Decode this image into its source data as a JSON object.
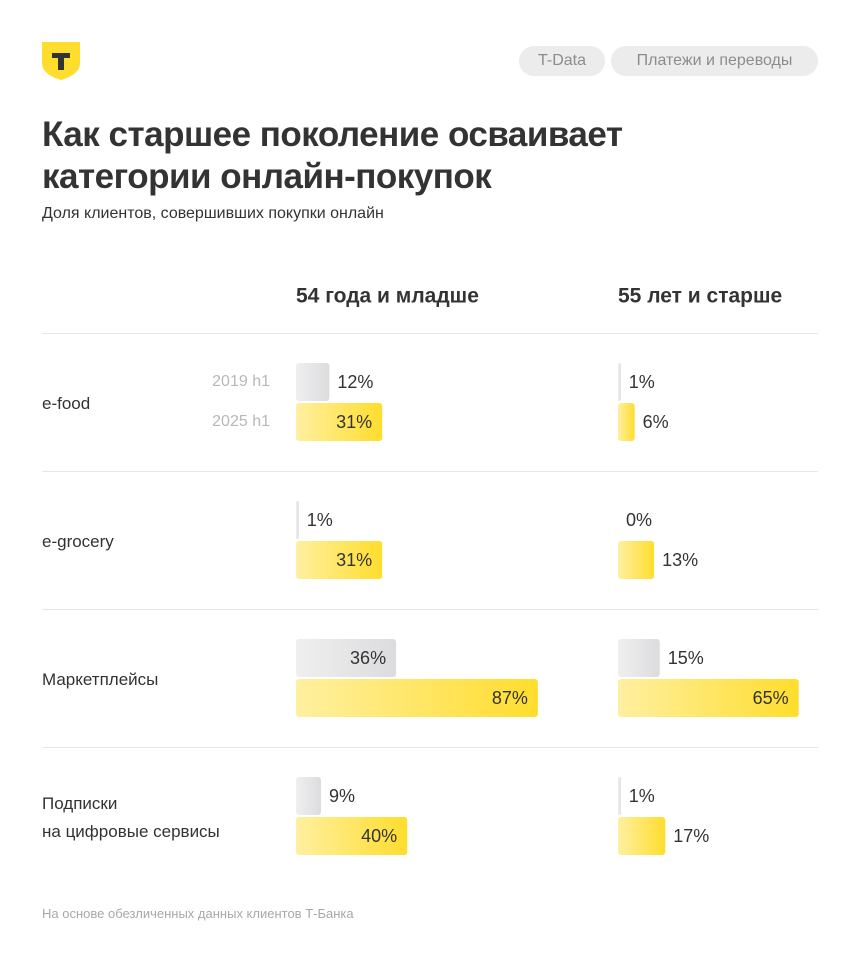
{
  "header": {
    "tags": [
      "T-Data",
      "Платежи и переводы"
    ]
  },
  "chart_data": {
    "type": "grouped-hbar",
    "title": "Как старшее поколение осваивает\nкатегории онлайн-покупок",
    "subtitle": "Доля клиентов, совершивших покупки онлайн",
    "categories": [
      "e-food",
      "e-grocery",
      "Маркетплейсы",
      "Подписки\nна цифровые сервисы"
    ],
    "xlim": [
      0,
      100
    ],
    "panels": [
      {
        "title": "54 года и младше",
        "series": [
          {
            "name": "2019 h1",
            "color": "#dcdcde",
            "values": [
              12,
              1,
              36,
              9
            ],
            "value_labels": [
              "12%",
              "1%",
              "36%",
              "9%"
            ]
          },
          {
            "name": "2025 h1",
            "color": "#ffdd2d",
            "values": [
              31,
              31,
              87,
              40
            ],
            "value_labels": [
              "31%",
              "31%",
              "87%",
              "40%"
            ]
          }
        ]
      },
      {
        "title": "55 лет и старше",
        "series": [
          {
            "name": "2019 h1",
            "color": "#dcdcde",
            "values": [
              1,
              0,
              15,
              1
            ],
            "value_labels": [
              "1%",
              "0%",
              "15%",
              "1%"
            ]
          },
          {
            "name": "2025 h1",
            "color": "#ffdd2d",
            "values": [
              6,
              13,
              65,
              17
            ],
            "value_labels": [
              "6%",
              "13%",
              "65%",
              "17%"
            ]
          }
        ]
      }
    ],
    "note": "На основе обезличенных данных клиентов Т-Банка"
  }
}
